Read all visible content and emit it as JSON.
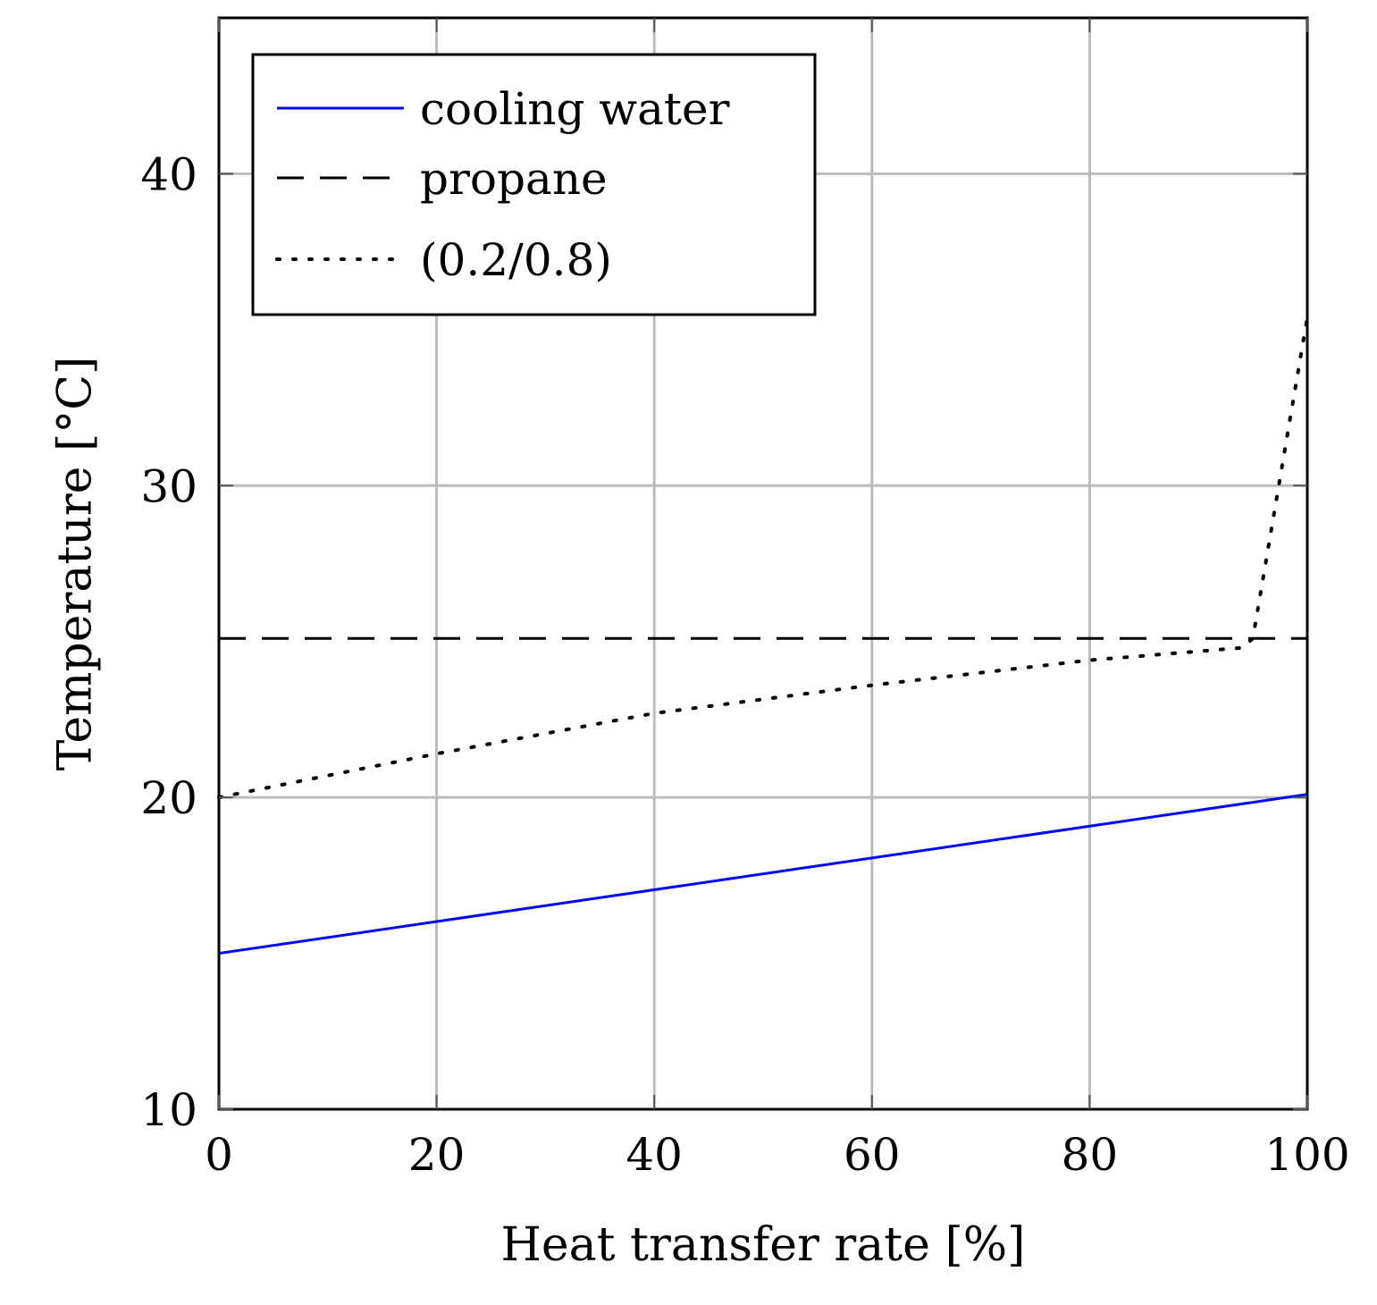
{
  "chart_data": {
    "type": "line",
    "title": "",
    "xlabel": "Heat transfer rate [%]",
    "ylabel": "Temperature [°C]",
    "xlim": [
      0,
      100
    ],
    "ylim": [
      10,
      45
    ],
    "xticks": [
      0,
      20,
      40,
      60,
      80,
      100
    ],
    "yticks": [
      10,
      20,
      30,
      40
    ],
    "grid": true,
    "legend_position": "top-left",
    "series": [
      {
        "name": "cooling water",
        "style": "solid",
        "color": "#0000ff",
        "x": [
          0,
          100
        ],
        "y": [
          15,
          20.1
        ]
      },
      {
        "name": "propane",
        "style": "dashed",
        "color": "#000000",
        "x": [
          0,
          100
        ],
        "y": [
          25.1,
          25.1
        ]
      },
      {
        "name": "(0.2/0.8)",
        "style": "dotted",
        "color": "#000000",
        "x": [
          0,
          20,
          40,
          60,
          80,
          94,
          95,
          100
        ],
        "y": [
          20,
          21.4,
          22.7,
          23.6,
          24.4,
          24.8,
          25.1,
          35.4
        ]
      }
    ]
  }
}
